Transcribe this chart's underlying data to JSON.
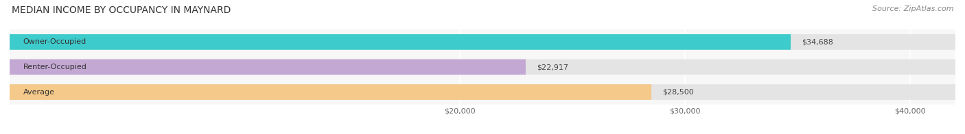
{
  "title": "MEDIAN INCOME BY OCCUPANCY IN MAYNARD",
  "source": "Source: ZipAtlas.com",
  "categories": [
    "Owner-Occupied",
    "Renter-Occupied",
    "Average"
  ],
  "values": [
    34688,
    22917,
    28500
  ],
  "labels": [
    "$34,688",
    "$22,917",
    "$28,500"
  ],
  "bar_colors": [
    "#3ecbcb",
    "#c4a8d4",
    "#f5c98a"
  ],
  "bar_bg_color": "#e4e4e4",
  "xlim": [
    0,
    42000
  ],
  "xticks": [
    20000,
    30000,
    40000
  ],
  "xtick_labels": [
    "$20,000",
    "$30,000",
    "$40,000"
  ],
  "title_fontsize": 10,
  "source_fontsize": 8,
  "label_fontsize": 8,
  "cat_fontsize": 8,
  "tick_fontsize": 8,
  "bar_height": 0.62,
  "bar_gap": 0.18,
  "bg_color": "#f7f7f7",
  "fig_bg_color": "#ffffff",
  "grid_color": "#ffffff"
}
